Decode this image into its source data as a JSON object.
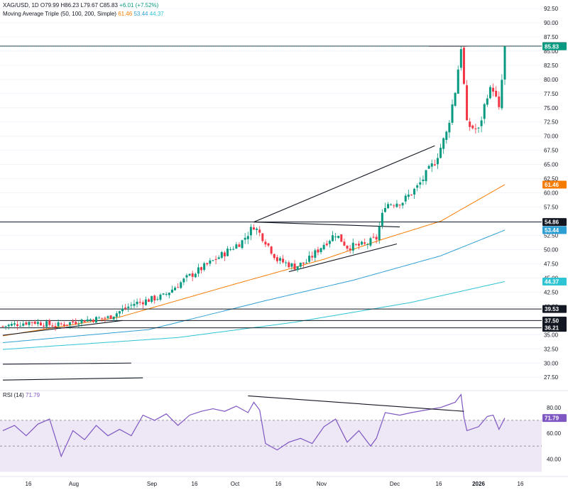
{
  "header": {
    "symbol": "XAG/USD, 1D",
    "ohlc": [
      "O79.99",
      "H86.23",
      "L79.67",
      "C85.83",
      "+6.01 (+7.52%)"
    ],
    "ma_label": "Moving Average Triple (50, 100, 200, Simple)",
    "ma_values": [
      "61.46",
      "53.44",
      "44.37"
    ],
    "rsi_label": "RSI (14)",
    "rsi_value": "71.79"
  },
  "colors": {
    "up": "#089981",
    "down": "#f23645",
    "ma50": "#f57c00",
    "ma100": "#2e9fd3",
    "ma200": "#2ec4d3",
    "rsi": "#7e57c2",
    "rsi_band": "#ede7f6",
    "line": "#131722",
    "grid": "#f0f3fa"
  },
  "chart_data": [
    {
      "type": "candlestick",
      "y_axis_ticks": [
        "92.50",
        "90.00",
        "87.50",
        "85.00",
        "82.50",
        "80.00",
        "77.50",
        "75.00",
        "72.50",
        "70.00",
        "67.50",
        "65.00",
        "62.50",
        "60.00",
        "57.50",
        "55.00",
        "52.50",
        "50.00",
        "47.50",
        "45.00",
        "42.50",
        "40.00",
        "37.50",
        "35.00",
        "32.50",
        "30.00",
        "27.50"
      ],
      "ylim": [
        25.4,
        94.0
      ],
      "x_axis_labels": [
        "16",
        "Aug",
        "Sep",
        "16",
        "Oct",
        "16",
        "Nov",
        "Dec",
        "16",
        "2026",
        "16"
      ],
      "price_badges": [
        {
          "label": "85.87",
          "value": 85.87,
          "color": "#131722"
        },
        {
          "label": "85.83",
          "value": 85.83,
          "color": "#089981"
        },
        {
          "label": "61.46",
          "value": 61.46,
          "color": "#f57c00"
        },
        {
          "label": "54.86",
          "value": 54.86,
          "color": "#131722"
        },
        {
          "label": "53.44",
          "value": 53.44,
          "color": "#2e9fd3"
        },
        {
          "label": "44.37",
          "value": 44.37,
          "color": "#2ec4d3"
        },
        {
          "label": "39.53",
          "value": 39.53,
          "color": "#131722"
        },
        {
          "label": "37.50",
          "value": 37.5,
          "color": "#131722"
        },
        {
          "label": "36.21",
          "value": 36.21,
          "color": "#131722"
        }
      ],
      "horizontal_levels": [
        85.87,
        54.86,
        39.53,
        37.5,
        36.21
      ],
      "anchors": [
        {
          "i": 0,
          "c": 36.5
        },
        {
          "i": 10,
          "c": 37.3
        },
        {
          "i": 18,
          "c": 36.6
        },
        {
          "i": 28,
          "c": 37.6
        },
        {
          "i": 36,
          "c": 38.0
        },
        {
          "i": 45,
          "c": 40.5
        },
        {
          "i": 55,
          "c": 41.8
        },
        {
          "i": 63,
          "c": 45.0
        },
        {
          "i": 72,
          "c": 48.0
        },
        {
          "i": 82,
          "c": 51.5
        },
        {
          "i": 86,
          "c": 54.2
        },
        {
          "i": 90,
          "c": 51.5
        },
        {
          "i": 94,
          "c": 48.2
        },
        {
          "i": 100,
          "c": 47.0
        },
        {
          "i": 104,
          "c": 47.8
        },
        {
          "i": 110,
          "c": 51.0
        },
        {
          "i": 114,
          "c": 52.8
        },
        {
          "i": 118,
          "c": 50.5
        },
        {
          "i": 124,
          "c": 50.8
        },
        {
          "i": 128,
          "c": 52.0
        },
        {
          "i": 131,
          "c": 58.0
        },
        {
          "i": 137,
          "c": 58.5
        },
        {
          "i": 142,
          "c": 61.0
        },
        {
          "i": 148,
          "c": 65.5
        },
        {
          "i": 152,
          "c": 70.5
        },
        {
          "i": 155,
          "c": 78.0
        },
        {
          "i": 157,
          "c": 85.87
        },
        {
          "i": 159,
          "c": 72.0
        },
        {
          "i": 163,
          "c": 71.0
        },
        {
          "i": 166,
          "c": 77.5
        },
        {
          "i": 168,
          "c": 78.5
        },
        {
          "i": 170,
          "c": 74.5
        },
        {
          "i": 171,
          "c": 79.8
        },
        {
          "i": 172,
          "c": 85.83
        }
      ],
      "moving_averages": {
        "ma50": [
          [
            0,
            34.8
          ],
          [
            40,
            38.1
          ],
          [
            80,
            44.0
          ],
          [
            110,
            48.3
          ],
          [
            130,
            51.8
          ],
          [
            150,
            55.0
          ],
          [
            172,
            61.46
          ]
        ],
        "ma100": [
          [
            0,
            33.6
          ],
          [
            50,
            35.9
          ],
          [
            90,
            41.0
          ],
          [
            120,
            44.6
          ],
          [
            150,
            48.9
          ],
          [
            172,
            53.44
          ]
        ],
        "ma200": [
          [
            0,
            32.4
          ],
          [
            60,
            34.5
          ],
          [
            100,
            37.2
          ],
          [
            140,
            40.7
          ],
          [
            172,
            44.37
          ]
        ]
      },
      "trendlines": [
        [
          [
            0,
            34.9
          ],
          [
            41,
            37.5
          ]
        ],
        [
          [
            86,
            54.86
          ],
          [
            148,
            68.3
          ]
        ],
        [
          [
            86,
            54.86
          ],
          [
            136,
            54.0
          ]
        ],
        [
          [
            98,
            46.1
          ],
          [
            135,
            51.0
          ]
        ],
        [
          [
            0,
            29.8
          ],
          [
            44,
            30.0
          ]
        ],
        [
          [
            0,
            27.0
          ],
          [
            48,
            27.4
          ]
        ]
      ],
      "peak_marker": [
        [
          146,
          85.87
        ],
        [
          159,
          85.87
        ]
      ],
      "last_close": 85.83
    },
    {
      "type": "line",
      "name": "RSI (14)",
      "y_axis_ticks": [
        "80.00",
        "60.00",
        "40.00"
      ],
      "ylim": [
        28.0,
        92.0
      ],
      "band": [
        30,
        70
      ],
      "reference_line": 50,
      "rsi": [
        [
          0,
          62
        ],
        [
          4,
          66
        ],
        [
          8,
          58
        ],
        [
          12,
          67
        ],
        [
          16,
          71
        ],
        [
          20,
          42
        ],
        [
          24,
          62
        ],
        [
          28,
          55
        ],
        [
          32,
          66
        ],
        [
          36,
          58
        ],
        [
          40,
          63
        ],
        [
          44,
          58
        ],
        [
          48,
          74
        ],
        [
          52,
          70
        ],
        [
          56,
          75
        ],
        [
          60,
          66
        ],
        [
          64,
          74
        ],
        [
          68,
          77
        ],
        [
          72,
          79
        ],
        [
          76,
          77
        ],
        [
          80,
          81
        ],
        [
          84,
          76
        ],
        [
          86,
          84
        ],
        [
          88,
          78
        ],
        [
          90,
          52
        ],
        [
          94,
          47
        ],
        [
          98,
          53
        ],
        [
          102,
          56
        ],
        [
          106,
          52
        ],
        [
          110,
          65
        ],
        [
          114,
          71
        ],
        [
          118,
          53
        ],
        [
          122,
          62
        ],
        [
          126,
          50
        ],
        [
          128,
          56
        ],
        [
          131,
          76
        ],
        [
          136,
          74
        ],
        [
          140,
          76
        ],
        [
          145,
          78
        ],
        [
          150,
          80
        ],
        [
          155,
          84
        ],
        [
          157,
          90
        ],
        [
          158,
          72
        ],
        [
          159,
          62
        ],
        [
          163,
          65
        ],
        [
          166,
          73
        ],
        [
          168,
          74
        ],
        [
          170,
          63
        ],
        [
          172,
          71.79
        ]
      ],
      "divergence_line": [
        [
          84,
          89
        ],
        [
          158,
          77
        ]
      ],
      "last_value": 71.79
    }
  ]
}
